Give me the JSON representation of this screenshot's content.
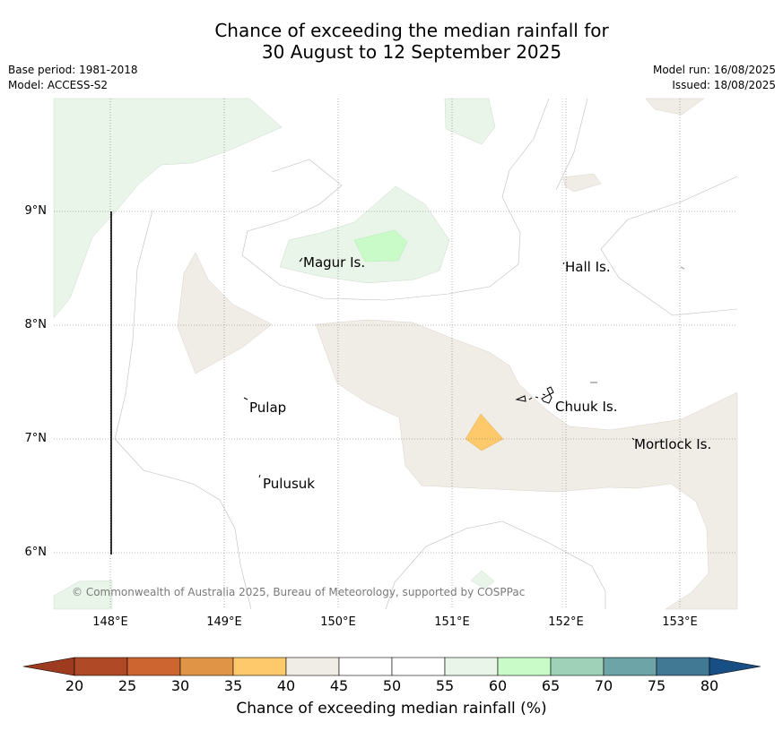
{
  "title": {
    "line1": "Chance of exceeding the median rainfall for",
    "line2": "30 August to 12 September 2025"
  },
  "meta": {
    "base_period": "Base period: 1981-2018",
    "model": "Model: ACCESS-S2",
    "model_run": "Model run: 16/08/2025",
    "issued": "Issued: 18/08/2025"
  },
  "axes": {
    "lat_ticks": [
      "9°N",
      "8°N",
      "7°N",
      "6°N"
    ],
    "lon_ticks": [
      "148°E",
      "149°E",
      "150°E",
      "151°E",
      "152°E",
      "153°E"
    ]
  },
  "places": [
    {
      "name": "Magur Is."
    },
    {
      "name": "Hall Is."
    },
    {
      "name": "Pulap"
    },
    {
      "name": "Chuuk Is."
    },
    {
      "name": "Mortlock Is."
    },
    {
      "name": "Pulusuk"
    }
  ],
  "copyright": "© Commonwealth of Australia 2025, Bureau of Meteorology, supported by COSPPac",
  "colorbar": {
    "ticks": [
      "20",
      "25",
      "30",
      "35",
      "40",
      "45",
      "50",
      "55",
      "60",
      "65",
      "70",
      "75",
      "80"
    ],
    "colors": [
      "#b04a26",
      "#cd6530",
      "#e09445",
      "#fdc96a",
      "#f0ece6",
      "#ffffff",
      "#ffffff",
      "#e9f5e8",
      "#c9fbc8",
      "#9fd1b8",
      "#6ca4a7",
      "#417893"
    ],
    "under_color": "#9d3a1f",
    "over_color": "#174f84",
    "label": "Chance of exceeding median rainfall (%)"
  }
}
